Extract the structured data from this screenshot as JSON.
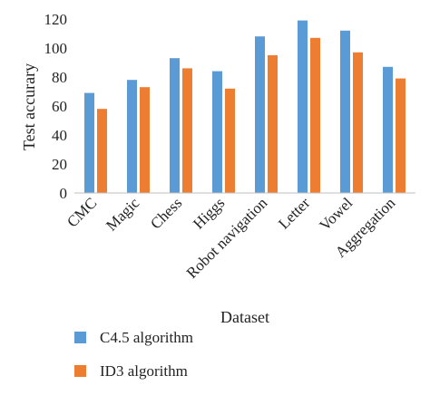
{
  "chart_data": {
    "type": "bar",
    "title": "",
    "xlabel": "Dataset",
    "ylabel": "Test accurary",
    "ylim": [
      0,
      120
    ],
    "yticks": [
      0,
      20,
      40,
      60,
      80,
      100,
      120
    ],
    "categories": [
      "CMC",
      "Magic",
      "Chess",
      "Higgs",
      "Robot navigation",
      "Letter",
      "Vowel",
      "Aggregation"
    ],
    "series": [
      {
        "name": "C4.5 algorithm",
        "color": "#5b9bd5",
        "values": [
          69,
          78,
          93,
          84,
          108,
          119,
          112,
          87
        ]
      },
      {
        "name": "ID3 algorithm",
        "color": "#ed7d31",
        "values": [
          58,
          73,
          86,
          72,
          95,
          107,
          97,
          79
        ]
      }
    ],
    "grid": false,
    "legend_position": "bottom-left"
  }
}
